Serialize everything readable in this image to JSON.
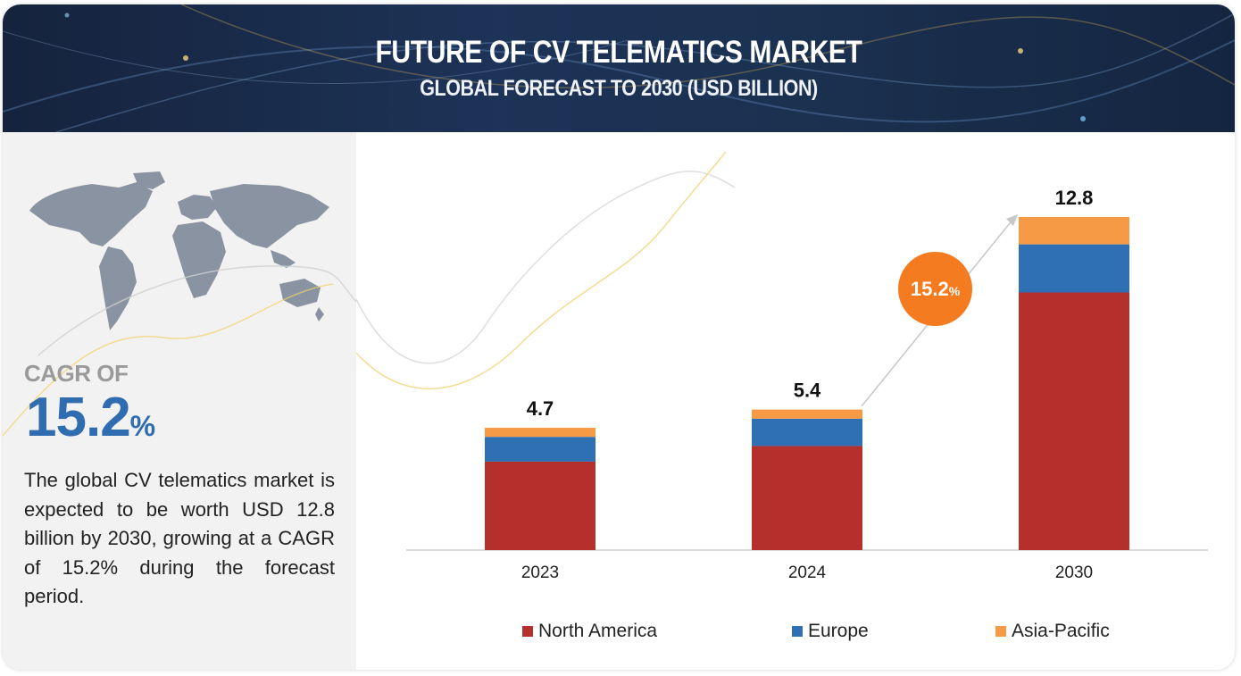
{
  "header": {
    "title": "FUTURE OF CV TELEMATICS MARKET",
    "subtitle": "GLOBAL FORECAST TO 2030 (USD BILLION)"
  },
  "left_panel": {
    "cagr_label": "CAGR OF",
    "cagr_value": "15.2",
    "cagr_unit": "%",
    "description": "The global CV telematics market is expected to be worth USD 12.8 billion by 2030, growing at a CAGR of 15.2% during the forecast period."
  },
  "bubble": {
    "value": "15.2",
    "unit": "%"
  },
  "colors": {
    "north_america": "#b5302c",
    "europe": "#2f6fb3",
    "asia_pacific": "#f79a45",
    "accent": "#f47b1f",
    "banner": "#1d3357"
  },
  "chart_data": {
    "type": "bar",
    "stacked": true,
    "categories": [
      "2023",
      "2024",
      "2030"
    ],
    "totals": [
      "4.7",
      "5.4",
      "12.8"
    ],
    "series": [
      {
        "name": "North America",
        "color": "#b5302c",
        "values": [
          3.4,
          4.0,
          9.9
        ]
      },
      {
        "name": "Europe",
        "color": "#2f6fb3",
        "values": [
          0.95,
          1.05,
          1.85
        ]
      },
      {
        "name": "Asia-Pacific",
        "color": "#f79a45",
        "values": [
          0.35,
          0.35,
          1.05
        ]
      }
    ],
    "ylim": [
      0,
      12.8
    ],
    "legend_position": "bottom"
  }
}
